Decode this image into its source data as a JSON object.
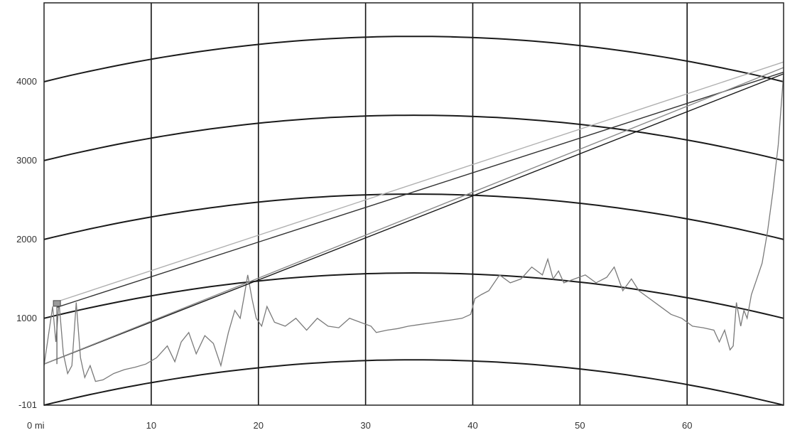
{
  "chart_data": {
    "type": "line",
    "title": "",
    "xlabel": "",
    "ylabel": "",
    "xlim": [
      0,
      69
    ],
    "ylim": [
      -101,
      5000
    ],
    "x_ticks": [
      {
        "value": 0,
        "label": "0 mi"
      },
      {
        "value": 10,
        "label": "10"
      },
      {
        "value": 20,
        "label": "20"
      },
      {
        "value": 30,
        "label": "30"
      },
      {
        "value": 40,
        "label": "40"
      },
      {
        "value": 50,
        "label": "50"
      },
      {
        "value": 60,
        "label": "60"
      }
    ],
    "y_ticks": [
      {
        "value": -101,
        "label": "-101"
      },
      {
        "value": 1000,
        "label": "1000"
      },
      {
        "value": 2000,
        "label": "2000"
      },
      {
        "value": 3000,
        "label": "3000"
      },
      {
        "value": 4000,
        "label": "4000"
      }
    ],
    "grid": "vertical lines at 10 mi spacing",
    "earth_curvature_lines": {
      "offsets": [
        -101,
        1000,
        2000,
        3000,
        4000
      ],
      "bulge_ft": 575,
      "center_mi": 34.5
    },
    "series": [
      {
        "kind": "terrain",
        "color": "#7a7a7a",
        "x": [
          0,
          0.8,
          1.1,
          1.4,
          1.8,
          2.2,
          2.6,
          3.0,
          3.4,
          3.8,
          4.3,
          4.8,
          5.5,
          6.5,
          7.5,
          8.5,
          9.5,
          10.5,
          11.5,
          12.2,
          12.8,
          13.5,
          14.2,
          15.0,
          15.8,
          16.5,
          17.2,
          17.8,
          18.3,
          18.7,
          19.0,
          19.4,
          19.8,
          20.3,
          20.8,
          21.5,
          22.5,
          23.5,
          24.5,
          25.5,
          26.5,
          27.5,
          28.5,
          29.5,
          30.5,
          31.0,
          32.0,
          33.0,
          34.0,
          35.0,
          36.0,
          37.0,
          38.0,
          39.0,
          39.8,
          40.2,
          40.8,
          41.5,
          42.5,
          43.5,
          44.5,
          45.5,
          46.5,
          47.0,
          47.5,
          48.0,
          48.5,
          49.5,
          50.5,
          51.5,
          52.5,
          53.2,
          54.0,
          54.8,
          55.5,
          56.5,
          57.5,
          58.5,
          59.5,
          60.5,
          61.5,
          62.5,
          63.0,
          63.5,
          64.0,
          64.3,
          64.6,
          65.0,
          65.3,
          65.6,
          66.0,
          66.5,
          67.0,
          67.5,
          68.0,
          68.5,
          69.0
        ],
        "y": [
          400,
          1150,
          700,
          1200,
          550,
          300,
          400,
          1200,
          500,
          250,
          400,
          200,
          220,
          300,
          350,
          380,
          420,
          500,
          650,
          450,
          700,
          820,
          550,
          780,
          680,
          400,
          820,
          1100,
          1000,
          1300,
          1550,
          1250,
          1000,
          900,
          1150,
          950,
          900,
          1000,
          850,
          1000,
          900,
          880,
          1000,
          950,
          900,
          820,
          850,
          870,
          900,
          920,
          940,
          960,
          980,
          1000,
          1050,
          1250,
          1300,
          1350,
          1550,
          1450,
          1500,
          1650,
          1550,
          1750,
          1500,
          1600,
          1450,
          1500,
          1550,
          1450,
          1520,
          1650,
          1350,
          1500,
          1350,
          1250,
          1150,
          1050,
          1000,
          900,
          880,
          850,
          700,
          850,
          600,
          650,
          1200,
          900,
          1100,
          1000,
          1300,
          1500,
          1700,
          2100,
          2600,
          3200,
          4100
        ]
      },
      {
        "kind": "line_of_sight",
        "color": "#1a1a1a",
        "x": [
          0,
          69
        ],
        "y": [
          420,
          4100
        ]
      },
      {
        "kind": "line_of_sight",
        "color": "#333333",
        "x": [
          1.2,
          69
        ],
        "y": [
          1140,
          4120
        ]
      },
      {
        "kind": "line_of_sight",
        "color": "#8a8a8a",
        "x": [
          0,
          69
        ],
        "y": [
          420,
          4180
        ]
      },
      {
        "kind": "line_of_sight",
        "color": "#b0b0b0",
        "x": [
          1.2,
          69
        ],
        "y": [
          1210,
          4250
        ]
      }
    ],
    "markers": [
      {
        "kind": "station",
        "x": 1.2,
        "y": 1180
      }
    ]
  }
}
